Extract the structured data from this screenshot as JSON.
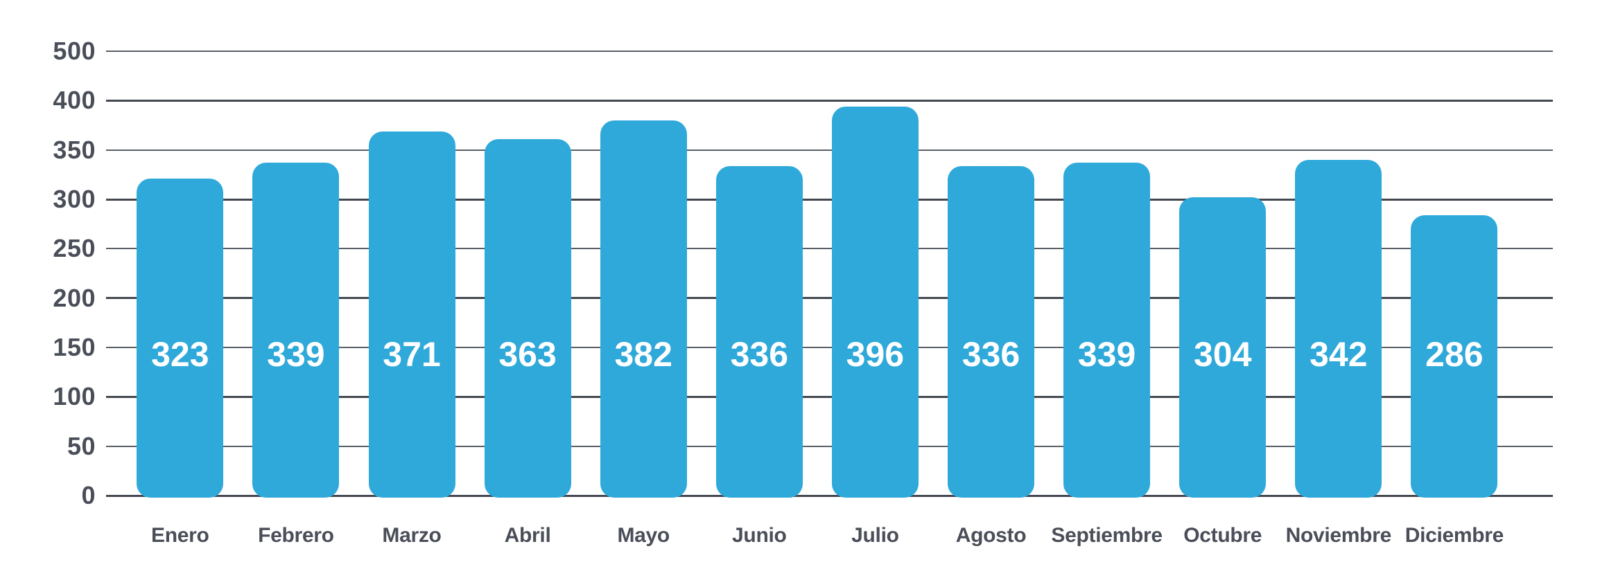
{
  "chart_data": {
    "type": "bar",
    "categories": [
      "Enero",
      "Febrero",
      "Marzo",
      "Abril",
      "Mayo",
      "Junio",
      "Julio",
      "Agosto",
      "Septiembre",
      "Octubre",
      "Noviembre",
      "Diciembre"
    ],
    "values": [
      323,
      339,
      371,
      363,
      382,
      336,
      396,
      336,
      339,
      304,
      342,
      286
    ],
    "value_labels": [
      "323",
      "339",
      "371",
      "363",
      "382",
      "336",
      "396",
      "336",
      "339",
      "304",
      "342",
      "286"
    ],
    "y_tick_labels": [
      "500",
      "400",
      "350",
      "300",
      "250",
      "200",
      "150",
      "100",
      "50",
      "0"
    ],
    "xlabel": "",
    "ylabel": "",
    "legend": "none",
    "grid": "horizontal",
    "colors": {
      "bar": "#2FA9DA",
      "grid_major": "#43474F",
      "grid_minor": "#5A5E66",
      "axis_text": "#4A4E58",
      "value_text": "#FFFFFF",
      "background": "#FFFFFF"
    }
  }
}
